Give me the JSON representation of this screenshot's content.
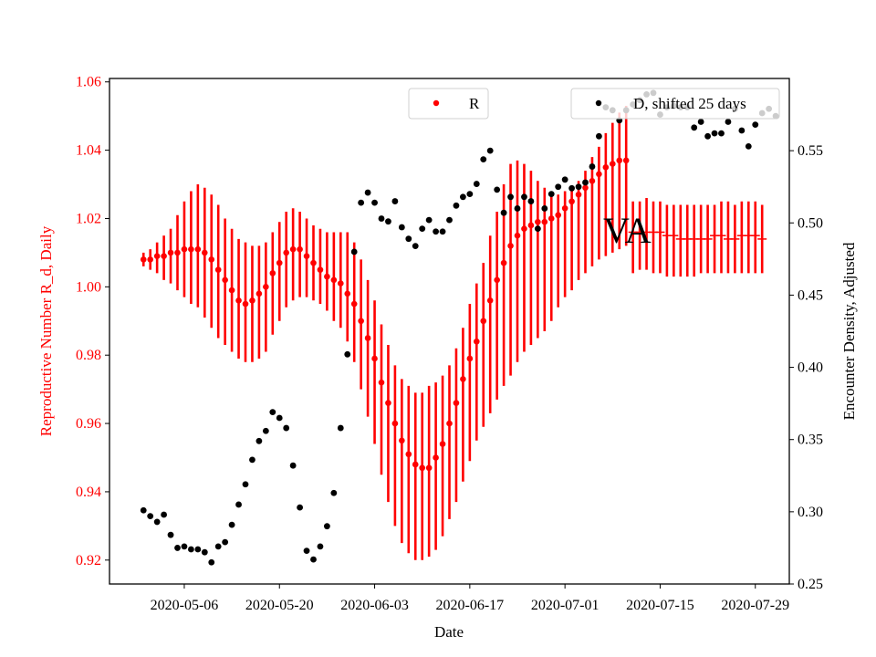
{
  "chart_data": {
    "type": "scatter",
    "title": "",
    "annotation": "VA",
    "xlabel": "Date",
    "ylabel_left": "Reproductive Number R_d, Daily",
    "ylabel_right": "Encounter Density, Adjusted",
    "xlim": [
      "2020-04-25",
      "2020-08-03"
    ],
    "ylim_left": [
      0.913,
      1.061
    ],
    "ylim_right": [
      0.25,
      0.6
    ],
    "x_ticks": [
      "2020-05-06",
      "2020-05-20",
      "2020-06-03",
      "2020-06-17",
      "2020-07-01",
      "2020-07-15",
      "2020-07-29"
    ],
    "y_ticks_left": [
      "0.92",
      "0.94",
      "0.96",
      "0.98",
      "1.00",
      "1.02",
      "1.04",
      "1.06"
    ],
    "y_ticks_right": [
      "0.25",
      "0.30",
      "0.35",
      "0.40",
      "0.45",
      "0.50",
      "0.55"
    ],
    "colors": {
      "R": "#ff0000",
      "D": "#000000",
      "left_axis_text": "#ff0000",
      "right_axis_text": "#000000"
    },
    "grid": false,
    "series": [
      {
        "name": "R",
        "axis": "left",
        "start_date": "2020-04-30",
        "points": [
          [
            1.008,
            1.006,
            1.01
          ],
          [
            1.008,
            1.005,
            1.011
          ],
          [
            1.009,
            1.004,
            1.013
          ],
          [
            1.009,
            1.002,
            1.015
          ],
          [
            1.01,
            1.001,
            1.017
          ],
          [
            1.01,
            0.999,
            1.021
          ],
          [
            1.011,
            0.997,
            1.025
          ],
          [
            1.011,
            0.995,
            1.028
          ],
          [
            1.011,
            0.994,
            1.03
          ],
          [
            1.01,
            0.991,
            1.029
          ],
          [
            1.008,
            0.988,
            1.027
          ],
          [
            1.005,
            0.985,
            1.024
          ],
          [
            1.002,
            0.983,
            1.02
          ],
          [
            0.999,
            0.981,
            1.017
          ],
          [
            0.996,
            0.979,
            1.014
          ],
          [
            0.995,
            0.978,
            1.013
          ],
          [
            0.996,
            0.978,
            1.012
          ],
          [
            0.998,
            0.979,
            1.012
          ],
          [
            1.0,
            0.981,
            1.013
          ],
          [
            1.004,
            0.986,
            1.016
          ],
          [
            1.007,
            0.99,
            1.019
          ],
          [
            1.01,
            0.994,
            1.022
          ],
          [
            1.011,
            0.996,
            1.023
          ],
          [
            1.011,
            0.997,
            1.022
          ],
          [
            1.009,
            0.997,
            1.02
          ],
          [
            1.007,
            0.996,
            1.018
          ],
          [
            1.005,
            0.995,
            1.017
          ],
          [
            1.003,
            0.993,
            1.016
          ],
          [
            1.002,
            0.99,
            1.016
          ],
          [
            1.001,
            0.988,
            1.016
          ],
          [
            0.998,
            0.984,
            1.016
          ],
          [
            0.995,
            0.978,
            1.013
          ],
          [
            0.99,
            0.97,
            1.008
          ],
          [
            0.985,
            0.962,
            1.002
          ],
          [
            0.979,
            0.954,
            0.996
          ],
          [
            0.972,
            0.945,
            0.989
          ],
          [
            0.966,
            0.937,
            0.983
          ],
          [
            0.96,
            0.93,
            0.977
          ],
          [
            0.955,
            0.925,
            0.973
          ],
          [
            0.951,
            0.922,
            0.971
          ],
          [
            0.948,
            0.92,
            0.969
          ],
          [
            0.947,
            0.92,
            0.969
          ],
          [
            0.947,
            0.921,
            0.971
          ],
          [
            0.95,
            0.923,
            0.972
          ],
          [
            0.954,
            0.927,
            0.974
          ],
          [
            0.96,
            0.932,
            0.977
          ],
          [
            0.966,
            0.937,
            0.982
          ],
          [
            0.973,
            0.943,
            0.988
          ],
          [
            0.979,
            0.949,
            0.995
          ],
          [
            0.984,
            0.955,
            1.001
          ],
          [
            0.99,
            0.959,
            1.007
          ],
          [
            0.996,
            0.963,
            1.015
          ],
          [
            1.002,
            0.967,
            1.022
          ],
          [
            1.007,
            0.971,
            1.03
          ],
          [
            1.012,
            0.974,
            1.036
          ],
          [
            1.015,
            0.978,
            1.037
          ],
          [
            1.017,
            0.981,
            1.036
          ],
          [
            1.018,
            0.983,
            1.034
          ],
          [
            1.019,
            0.985,
            1.031
          ],
          [
            1.019,
            0.987,
            1.029
          ],
          [
            1.02,
            0.99,
            1.027
          ],
          [
            1.021,
            0.994,
            1.027
          ],
          [
            1.023,
            0.997,
            1.028
          ],
          [
            1.025,
            0.999,
            1.029
          ],
          [
            1.027,
            1.002,
            1.031
          ],
          [
            1.029,
            1.004,
            1.034
          ],
          [
            1.031,
            1.006,
            1.038
          ],
          [
            1.033,
            1.008,
            1.041
          ],
          [
            1.035,
            1.009,
            1.045
          ],
          [
            1.036,
            1.01,
            1.048
          ],
          [
            1.037,
            1.011,
            1.051
          ],
          [
            1.037,
            1.012,
            1.053
          ],
          [
            1.016,
            1.004,
            1.025
          ],
          [
            1.016,
            1.005,
            1.025
          ],
          [
            1.016,
            1.005,
            1.026
          ],
          [
            1.016,
            1.004,
            1.025
          ],
          [
            1.016,
            1.004,
            1.025
          ],
          [
            1.015,
            1.003,
            1.024
          ],
          [
            1.015,
            1.003,
            1.024
          ],
          [
            1.014,
            1.003,
            1.024
          ],
          [
            1.014,
            1.003,
            1.024
          ],
          [
            1.014,
            1.003,
            1.024
          ],
          [
            1.014,
            1.004,
            1.024
          ],
          [
            1.014,
            1.004,
            1.024
          ],
          [
            1.015,
            1.004,
            1.024
          ],
          [
            1.015,
            1.004,
            1.025
          ],
          [
            1.014,
            1.004,
            1.025
          ],
          [
            1.014,
            1.004,
            1.024
          ],
          [
            1.015,
            1.004,
            1.025
          ],
          [
            1.015,
            1.004,
            1.025
          ],
          [
            1.015,
            1.004,
            1.025
          ],
          [
            1.014,
            1.004,
            1.024
          ]
        ]
      },
      {
        "name": "D, shifted 25 days",
        "axis": "right",
        "points": [
          [
            "2020-04-30",
            0.301
          ],
          [
            "2020-05-01",
            0.297
          ],
          [
            "2020-05-02",
            0.293
          ],
          [
            "2020-05-03",
            0.298
          ],
          [
            "2020-05-04",
            0.284
          ],
          [
            "2020-05-05",
            0.275
          ],
          [
            "2020-05-06",
            0.276
          ],
          [
            "2020-05-07",
            0.274
          ],
          [
            "2020-05-08",
            0.274
          ],
          [
            "2020-05-09",
            0.272
          ],
          [
            "2020-05-10",
            0.265
          ],
          [
            "2020-05-11",
            0.276
          ],
          [
            "2020-05-12",
            0.279
          ],
          [
            "2020-05-13",
            0.291
          ],
          [
            "2020-05-14",
            0.305
          ],
          [
            "2020-05-15",
            0.319
          ],
          [
            "2020-05-16",
            0.336
          ],
          [
            "2020-05-17",
            0.349
          ],
          [
            "2020-05-18",
            0.356
          ],
          [
            "2020-05-19",
            0.369
          ],
          [
            "2020-05-20",
            0.365
          ],
          [
            "2020-05-21",
            0.358
          ],
          [
            "2020-05-22",
            0.332
          ],
          [
            "2020-05-23",
            0.303
          ],
          [
            "2020-05-24",
            0.273
          ],
          [
            "2020-05-25",
            0.267
          ],
          [
            "2020-05-26",
            0.276
          ],
          [
            "2020-05-27",
            0.29
          ],
          [
            "2020-05-28",
            0.313
          ],
          [
            "2020-05-29",
            0.358
          ],
          [
            "2020-05-30",
            0.409
          ],
          [
            "2020-05-31",
            0.48
          ],
          [
            "2020-06-01",
            0.514
          ],
          [
            "2020-06-02",
            0.521
          ],
          [
            "2020-06-03",
            0.514
          ],
          [
            "2020-06-04",
            0.503
          ],
          [
            "2020-06-05",
            0.501
          ],
          [
            "2020-06-06",
            0.515
          ],
          [
            "2020-06-07",
            0.497
          ],
          [
            "2020-06-08",
            0.489
          ],
          [
            "2020-06-09",
            0.484
          ],
          [
            "2020-06-10",
            0.496
          ],
          [
            "2020-06-11",
            0.502
          ],
          [
            "2020-06-12",
            0.494
          ],
          [
            "2020-06-13",
            0.494
          ],
          [
            "2020-06-14",
            0.502
          ],
          [
            "2020-06-15",
            0.512
          ],
          [
            "2020-06-16",
            0.518
          ],
          [
            "2020-06-17",
            0.52
          ],
          [
            "2020-06-18",
            0.527
          ],
          [
            "2020-06-19",
            0.544
          ],
          [
            "2020-06-20",
            0.55
          ],
          [
            "2020-06-21",
            0.523
          ],
          [
            "2020-06-22",
            0.507
          ],
          [
            "2020-06-23",
            0.518
          ],
          [
            "2020-06-24",
            0.51
          ],
          [
            "2020-06-25",
            0.518
          ],
          [
            "2020-06-26",
            0.515
          ],
          [
            "2020-06-27",
            0.496
          ],
          [
            "2020-06-28",
            0.51
          ],
          [
            "2020-06-29",
            0.52
          ],
          [
            "2020-06-30",
            0.525
          ],
          [
            "2020-07-01",
            0.53
          ],
          [
            "2020-07-02",
            0.524
          ],
          [
            "2020-07-03",
            0.525
          ],
          [
            "2020-07-04",
            0.528
          ],
          [
            "2020-07-05",
            0.539
          ],
          [
            "2020-07-06",
            0.56
          ],
          [
            "2020-07-07",
            0.58
          ],
          [
            "2020-07-08",
            0.578
          ],
          [
            "2020-07-09",
            0.571
          ],
          [
            "2020-07-10",
            0.578
          ],
          [
            "2020-07-11",
            0.582
          ],
          [
            "2020-07-12",
            0.585
          ],
          [
            "2020-07-13",
            0.589
          ],
          [
            "2020-07-14",
            0.59
          ],
          [
            "2020-07-15",
            0.575
          ],
          [
            "2020-07-16",
            0.58
          ],
          [
            "2020-07-17",
            0.581
          ],
          [
            "2020-07-18",
            0.58
          ],
          [
            "2020-07-19",
            0.58
          ],
          [
            "2020-07-20",
            0.566
          ],
          [
            "2020-07-21",
            0.57
          ],
          [
            "2020-07-22",
            0.56
          ],
          [
            "2020-07-23",
            0.562
          ],
          [
            "2020-07-24",
            0.562
          ],
          [
            "2020-07-25",
            0.57
          ],
          [
            "2020-07-26",
            0.579
          ],
          [
            "2020-07-27",
            0.564
          ],
          [
            "2020-07-28",
            0.553
          ],
          [
            "2020-07-29",
            0.568
          ],
          [
            "2020-07-30",
            0.576
          ],
          [
            "2020-07-31",
            0.579
          ],
          [
            "2020-08-01",
            0.574
          ]
        ]
      }
    ],
    "legend": [
      {
        "label": "R",
        "color": "#ff0000",
        "position": "top-center"
      },
      {
        "label": "D, shifted 25 days",
        "color": "#000000",
        "position": "top-right"
      }
    ]
  }
}
